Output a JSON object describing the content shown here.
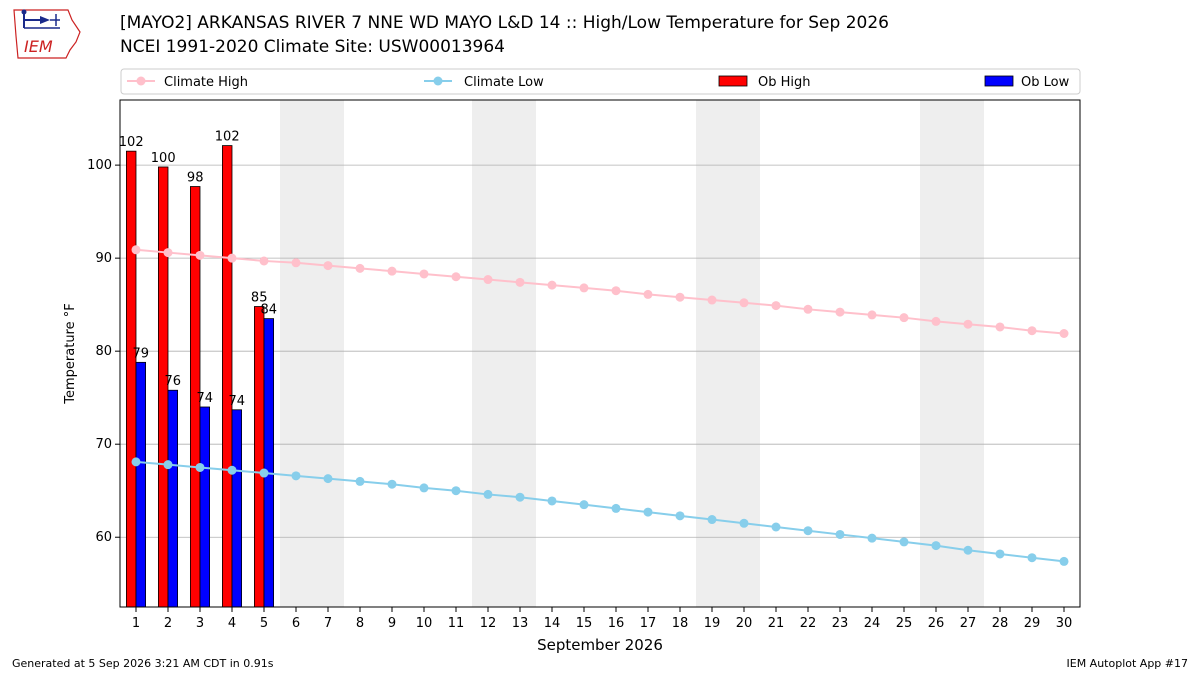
{
  "header": {
    "title_line1": "[MAYO2] ARKANSAS RIVER 7 NNE WD MAYO L&D 14 :: High/Low Temperature for Sep 2026",
    "title_line2": "NCEI 1991-2020 Climate Site: USW00013964",
    "logo_text": "IEM"
  },
  "footer": {
    "generated": "Generated at 5 Sep 2026 3:21 AM CDT in 0.91s",
    "app": "IEM Autoplot App #17"
  },
  "colors": {
    "climate_high": "#ffc0cb",
    "climate_low": "#87ceeb",
    "ob_high": "#ff0000",
    "ob_low": "#0000ff",
    "weekend_shade": "#eeeeee",
    "grid": "#b0b0b0"
  },
  "chart_data": {
    "type": "bar",
    "xlabel": "September 2026",
    "ylabel": "Temperature °F",
    "x": [
      1,
      2,
      3,
      4,
      5,
      6,
      7,
      8,
      9,
      10,
      11,
      12,
      13,
      14,
      15,
      16,
      17,
      18,
      19,
      20,
      21,
      22,
      23,
      24,
      25,
      26,
      27,
      28,
      29,
      30
    ],
    "xlim": [
      0.5,
      30.5
    ],
    "ylim": [
      52.5,
      107
    ],
    "yticks": [
      60,
      70,
      80,
      90,
      100
    ],
    "grid": true,
    "legend_position": "top",
    "legend": [
      "Climate High",
      "Climate Low",
      "Ob High",
      "Ob Low"
    ],
    "weekend_shading": [
      [
        5.5,
        7.5
      ],
      [
        11.5,
        13.5
      ],
      [
        18.5,
        20.5
      ],
      [
        25.5,
        27.5
      ]
    ],
    "series": [
      {
        "name": "Climate High",
        "kind": "line",
        "values": [
          90.9,
          90.6,
          90.3,
          90.0,
          89.7,
          89.5,
          89.2,
          88.9,
          88.6,
          88.3,
          88.0,
          87.7,
          87.4,
          87.1,
          86.8,
          86.5,
          86.1,
          85.8,
          85.5,
          85.2,
          84.9,
          84.5,
          84.2,
          83.9,
          83.6,
          83.2,
          82.9,
          82.6,
          82.2,
          81.9
        ]
      },
      {
        "name": "Climate Low",
        "kind": "line",
        "values": [
          68.1,
          67.8,
          67.5,
          67.2,
          66.9,
          66.6,
          66.3,
          66.0,
          65.7,
          65.3,
          65.0,
          64.6,
          64.3,
          63.9,
          63.5,
          63.1,
          62.7,
          62.3,
          61.9,
          61.5,
          61.1,
          60.7,
          60.3,
          59.9,
          59.5,
          59.1,
          58.6,
          58.2,
          57.8,
          57.4
        ]
      },
      {
        "name": "Ob High",
        "kind": "bar",
        "x": [
          1,
          2,
          3,
          4,
          5
        ],
        "values": [
          101.5,
          99.8,
          97.7,
          102.1,
          84.8
        ],
        "labels": [
          "102",
          "100",
          "98",
          "102",
          "85"
        ]
      },
      {
        "name": "Ob Low",
        "kind": "bar",
        "x": [
          1,
          2,
          3,
          4,
          5
        ],
        "values": [
          78.8,
          75.8,
          74.0,
          73.7,
          83.5
        ],
        "labels": [
          "79",
          "76",
          "74",
          "74",
          "84"
        ]
      }
    ]
  }
}
